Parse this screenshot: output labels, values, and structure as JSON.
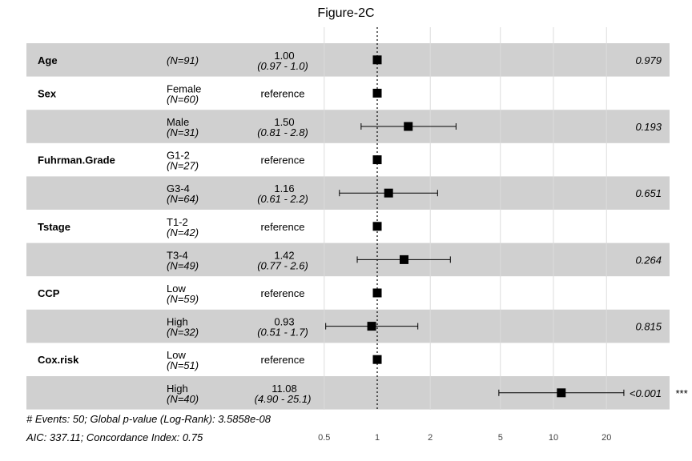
{
  "chart_data": {
    "type": "forest",
    "title": "Figure-2C",
    "x_scale": "log",
    "xlim": [
      0.5,
      30
    ],
    "reference_line": 1,
    "x_ticks": [
      0.5,
      1,
      2,
      5,
      10,
      20
    ],
    "x_tick_labels": [
      "0.5",
      "1",
      "2",
      "5",
      "10",
      "20"
    ],
    "rows": [
      {
        "variable": "Age",
        "level": "",
        "n": "(N=91)",
        "hr_text": "1.00",
        "ci_text": "(0.97 -  1.0)",
        "reference": false,
        "hr": 1.0,
        "lower": 0.97,
        "upper": 1.03,
        "p": "0.979",
        "stars": ""
      },
      {
        "variable": "Sex",
        "level": "Female",
        "n": "(N=60)",
        "hr_text": "reference",
        "ci_text": "",
        "reference": true,
        "hr": 1,
        "lower": null,
        "upper": null,
        "p": "",
        "stars": ""
      },
      {
        "variable": "",
        "level": "Male",
        "n": "(N=31)",
        "hr_text": "1.50",
        "ci_text": "(0.81 -  2.8)",
        "reference": false,
        "hr": 1.5,
        "lower": 0.81,
        "upper": 2.8,
        "p": "0.193",
        "stars": ""
      },
      {
        "variable": "Fuhrman.Grade",
        "level": "G1-2",
        "n": "(N=27)",
        "hr_text": "reference",
        "ci_text": "",
        "reference": true,
        "hr": 1,
        "lower": null,
        "upper": null,
        "p": "",
        "stars": ""
      },
      {
        "variable": "",
        "level": "G3-4",
        "n": "(N=64)",
        "hr_text": "1.16",
        "ci_text": "(0.61 -  2.2)",
        "reference": false,
        "hr": 1.16,
        "lower": 0.61,
        "upper": 2.2,
        "p": "0.651",
        "stars": ""
      },
      {
        "variable": "Tstage",
        "level": "T1-2",
        "n": "(N=42)",
        "hr_text": "reference",
        "ci_text": "",
        "reference": true,
        "hr": 1,
        "lower": null,
        "upper": null,
        "p": "",
        "stars": ""
      },
      {
        "variable": "",
        "level": "T3-4",
        "n": "(N=49)",
        "hr_text": "1.42",
        "ci_text": "(0.77 -  2.6)",
        "reference": false,
        "hr": 1.42,
        "lower": 0.77,
        "upper": 2.6,
        "p": "0.264",
        "stars": ""
      },
      {
        "variable": "CCP",
        "level": "Low",
        "n": "(N=59)",
        "hr_text": "reference",
        "ci_text": "",
        "reference": true,
        "hr": 1,
        "lower": null,
        "upper": null,
        "p": "",
        "stars": ""
      },
      {
        "variable": "",
        "level": "High",
        "n": "(N=32)",
        "hr_text": "0.93",
        "ci_text": "(0.51 -  1.7)",
        "reference": false,
        "hr": 0.93,
        "lower": 0.51,
        "upper": 1.7,
        "p": "0.815",
        "stars": ""
      },
      {
        "variable": "Cox.risk",
        "level": "Low",
        "n": "(N=51)",
        "hr_text": "reference",
        "ci_text": "",
        "reference": true,
        "hr": 1,
        "lower": null,
        "upper": null,
        "p": "",
        "stars": ""
      },
      {
        "variable": "",
        "level": "High",
        "n": "(N=40)",
        "hr_text": "11.08",
        "ci_text": "(4.90 - 25.1)",
        "reference": false,
        "hr": 11.08,
        "lower": 4.9,
        "upper": 25.1,
        "p": "<0.001",
        "stars": "***"
      }
    ],
    "footnote_line1": "# Events: 50; Global p-value (Log-Rank): 3.5858e-08",
    "footnote_line2": "AIC: 337.11; Concordance Index: 0.75",
    "colors": {
      "band": "#d0d0d0",
      "point": "#000000",
      "grid": "#dcdcdc",
      "background": "#ffffff"
    }
  }
}
